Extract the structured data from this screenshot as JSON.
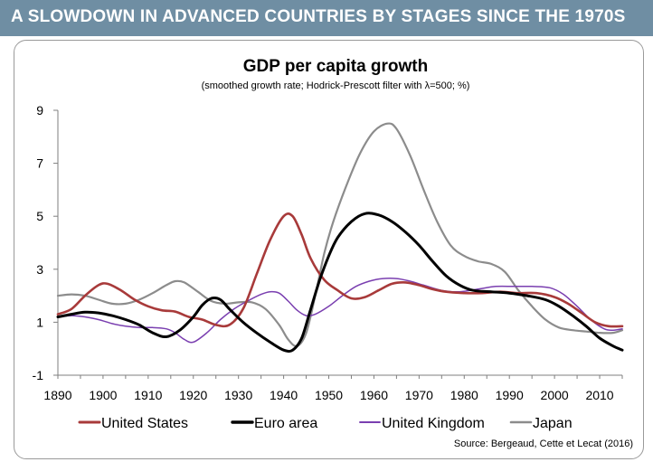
{
  "banner": {
    "title": "A SLOWDOWN IN ADVANCED COUNTRIES BY STAGES SINCE THE 1970S"
  },
  "chart_data": {
    "type": "line",
    "title": "GDP per capita growth",
    "subtitle": "(smoothed growth rate; Hodrick-Prescott filter with λ=500; %)",
    "source": "Source:  Bergeaud, Cette et Lecat (2016)",
    "xlabel": "",
    "ylabel": "",
    "xlim": [
      1890,
      2015
    ],
    "ylim": [
      -1,
      9
    ],
    "x_ticks": [
      1890,
      1900,
      1910,
      1920,
      1930,
      1940,
      1950,
      1960,
      1970,
      1980,
      1990,
      2000,
      2010
    ],
    "y_ticks": [
      -1,
      1,
      3,
      5,
      7,
      9
    ],
    "grid": false,
    "legend_position": "bottom",
    "series": [
      {
        "name": "United States",
        "color": "#a83a3a",
        "width": 2.6,
        "points": [
          [
            1890,
            1.3
          ],
          [
            1893,
            1.5
          ],
          [
            1896,
            2.0
          ],
          [
            1899,
            2.4
          ],
          [
            1901,
            2.45
          ],
          [
            1904,
            2.2
          ],
          [
            1907,
            1.85
          ],
          [
            1910,
            1.6
          ],
          [
            1913,
            1.45
          ],
          [
            1916,
            1.4
          ],
          [
            1919,
            1.2
          ],
          [
            1922,
            1.1
          ],
          [
            1925,
            0.9
          ],
          [
            1928,
            0.9
          ],
          [
            1931,
            1.5
          ],
          [
            1934,
            2.8
          ],
          [
            1937,
            4.1
          ],
          [
            1940,
            5.0
          ],
          [
            1942,
            5.0
          ],
          [
            1944,
            4.3
          ],
          [
            1946,
            3.4
          ],
          [
            1949,
            2.6
          ],
          [
            1952,
            2.2
          ],
          [
            1955,
            1.9
          ],
          [
            1958,
            1.95
          ],
          [
            1961,
            2.2
          ],
          [
            1964,
            2.45
          ],
          [
            1967,
            2.5
          ],
          [
            1970,
            2.4
          ],
          [
            1973,
            2.25
          ],
          [
            1976,
            2.15
          ],
          [
            1980,
            2.1
          ],
          [
            1984,
            2.1
          ],
          [
            1988,
            2.15
          ],
          [
            1992,
            2.1
          ],
          [
            1996,
            2.1
          ],
          [
            2000,
            1.95
          ],
          [
            2003,
            1.7
          ],
          [
            2006,
            1.35
          ],
          [
            2009,
            1.0
          ],
          [
            2012,
            0.85
          ],
          [
            2015,
            0.85
          ]
        ]
      },
      {
        "name": "Euro area",
        "color": "#000000",
        "width": 3,
        "points": [
          [
            1890,
            1.2
          ],
          [
            1893,
            1.3
          ],
          [
            1896,
            1.38
          ],
          [
            1899,
            1.35
          ],
          [
            1902,
            1.25
          ],
          [
            1905,
            1.1
          ],
          [
            1908,
            0.9
          ],
          [
            1911,
            0.6
          ],
          [
            1914,
            0.45
          ],
          [
            1917,
            0.7
          ],
          [
            1920,
            1.2
          ],
          [
            1922,
            1.65
          ],
          [
            1924,
            1.9
          ],
          [
            1926,
            1.85
          ],
          [
            1928,
            1.5
          ],
          [
            1931,
            1.0
          ],
          [
            1934,
            0.6
          ],
          [
            1937,
            0.25
          ],
          [
            1940,
            -0.05
          ],
          [
            1942,
            -0.05
          ],
          [
            1944,
            0.4
          ],
          [
            1946,
            1.5
          ],
          [
            1948,
            2.6
          ],
          [
            1950,
            3.5
          ],
          [
            1952,
            4.2
          ],
          [
            1955,
            4.8
          ],
          [
            1958,
            5.1
          ],
          [
            1961,
            5.05
          ],
          [
            1964,
            4.8
          ],
          [
            1967,
            4.4
          ],
          [
            1970,
            3.9
          ],
          [
            1973,
            3.3
          ],
          [
            1976,
            2.75
          ],
          [
            1979,
            2.4
          ],
          [
            1982,
            2.2
          ],
          [
            1986,
            2.15
          ],
          [
            1990,
            2.1
          ],
          [
            1994,
            2.0
          ],
          [
            1998,
            1.85
          ],
          [
            2001,
            1.6
          ],
          [
            2004,
            1.25
          ],
          [
            2007,
            0.85
          ],
          [
            2010,
            0.4
          ],
          [
            2013,
            0.1
          ],
          [
            2015,
            -0.05
          ]
        ]
      },
      {
        "name": "United Kingdom",
        "color": "#7a3fb0",
        "width": 1.5,
        "points": [
          [
            1890,
            1.2
          ],
          [
            1893,
            1.25
          ],
          [
            1896,
            1.2
          ],
          [
            1899,
            1.1
          ],
          [
            1902,
            0.95
          ],
          [
            1905,
            0.85
          ],
          [
            1908,
            0.8
          ],
          [
            1911,
            0.8
          ],
          [
            1914,
            0.75
          ],
          [
            1916,
            0.6
          ],
          [
            1918,
            0.35
          ],
          [
            1920,
            0.25
          ],
          [
            1923,
            0.6
          ],
          [
            1926,
            1.1
          ],
          [
            1929,
            1.5
          ],
          [
            1932,
            1.8
          ],
          [
            1935,
            2.05
          ],
          [
            1937,
            2.15
          ],
          [
            1939,
            2.1
          ],
          [
            1941,
            1.8
          ],
          [
            1943,
            1.45
          ],
          [
            1945,
            1.25
          ],
          [
            1947,
            1.3
          ],
          [
            1950,
            1.6
          ],
          [
            1953,
            2.0
          ],
          [
            1956,
            2.35
          ],
          [
            1959,
            2.55
          ],
          [
            1962,
            2.65
          ],
          [
            1965,
            2.65
          ],
          [
            1968,
            2.55
          ],
          [
            1971,
            2.4
          ],
          [
            1975,
            2.2
          ],
          [
            1979,
            2.15
          ],
          [
            1983,
            2.25
          ],
          [
            1987,
            2.35
          ],
          [
            1991,
            2.35
          ],
          [
            1995,
            2.35
          ],
          [
            1999,
            2.3
          ],
          [
            2002,
            2.05
          ],
          [
            2005,
            1.6
          ],
          [
            2008,
            1.1
          ],
          [
            2011,
            0.75
          ],
          [
            2013,
            0.7
          ],
          [
            2015,
            0.75
          ]
        ]
      },
      {
        "name": "Japan",
        "color": "#8c8c8c",
        "width": 2.2,
        "points": [
          [
            1890,
            2.0
          ],
          [
            1893,
            2.05
          ],
          [
            1896,
            2.0
          ],
          [
            1899,
            1.85
          ],
          [
            1902,
            1.7
          ],
          [
            1905,
            1.7
          ],
          [
            1908,
            1.85
          ],
          [
            1911,
            2.1
          ],
          [
            1914,
            2.4
          ],
          [
            1916,
            2.55
          ],
          [
            1918,
            2.5
          ],
          [
            1921,
            2.15
          ],
          [
            1924,
            1.8
          ],
          [
            1927,
            1.7
          ],
          [
            1930,
            1.75
          ],
          [
            1933,
            1.75
          ],
          [
            1936,
            1.5
          ],
          [
            1939,
            0.9
          ],
          [
            1941,
            0.35
          ],
          [
            1943,
            0.1
          ],
          [
            1945,
            0.6
          ],
          [
            1947,
            2.0
          ],
          [
            1949,
            3.6
          ],
          [
            1951,
            4.8
          ],
          [
            1954,
            6.2
          ],
          [
            1957,
            7.4
          ],
          [
            1960,
            8.2
          ],
          [
            1963,
            8.5
          ],
          [
            1965,
            8.3
          ],
          [
            1968,
            7.3
          ],
          [
            1971,
            6.0
          ],
          [
            1974,
            4.8
          ],
          [
            1977,
            3.9
          ],
          [
            1980,
            3.5
          ],
          [
            1983,
            3.3
          ],
          [
            1986,
            3.2
          ],
          [
            1989,
            2.9
          ],
          [
            1992,
            2.2
          ],
          [
            1995,
            1.6
          ],
          [
            1998,
            1.1
          ],
          [
            2001,
            0.8
          ],
          [
            2004,
            0.7
          ],
          [
            2007,
            0.65
          ],
          [
            2010,
            0.6
          ],
          [
            2013,
            0.6
          ],
          [
            2015,
            0.7
          ]
        ]
      }
    ]
  }
}
